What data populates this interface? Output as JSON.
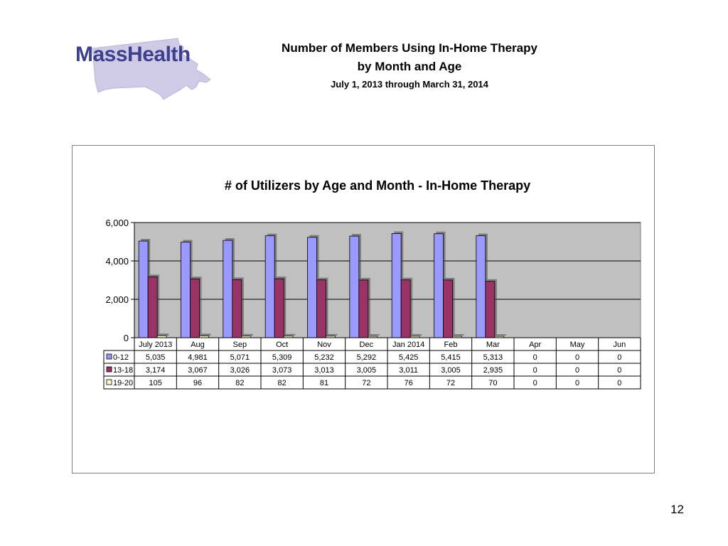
{
  "header": {
    "logo_text": "MassHealth",
    "title_line1": "Number of Members Using In-Home Therapy",
    "title_line2": "by Month and Age",
    "date_range": "July 1, 2013 through March 31, 2014"
  },
  "page_number": "12",
  "colors": {
    "series_0_12": "#9999ff",
    "series_13_18": "#993366",
    "series_19_20": "#ffffcc",
    "plot_background": "#c0c0c0",
    "logo_text": "#3d3f8f",
    "logo_map": "#cfcbe6"
  },
  "chart_data": {
    "type": "bar",
    "title": "# of Utilizers by Age and Month - In-Home Therapy",
    "categories": [
      "July 2013",
      "Aug",
      "Sep",
      "Oct",
      "Nov",
      "Dec",
      "Jan 2014",
      "Feb",
      "Mar",
      "Apr",
      "May",
      "Jun"
    ],
    "series": [
      {
        "name": "0-12",
        "values": [
          5035,
          4981,
          5071,
          5309,
          5232,
          5292,
          5425,
          5415,
          5313,
          0,
          0,
          0
        ],
        "labels": [
          "5,035",
          "4,981",
          "5,071",
          "5,309",
          "5,232",
          "5,292",
          "5,425",
          "5,415",
          "5,313",
          "0",
          "0",
          "0"
        ]
      },
      {
        "name": "13-18",
        "values": [
          3174,
          3067,
          3026,
          3073,
          3013,
          3005,
          3011,
          3005,
          2935,
          0,
          0,
          0
        ],
        "labels": [
          "3,174",
          "3,067",
          "3,026",
          "3,073",
          "3,013",
          "3,005",
          "3,011",
          "3,005",
          "2,935",
          "0",
          "0",
          "0"
        ]
      },
      {
        "name": "19-20",
        "values": [
          105,
          96,
          82,
          82,
          81,
          72,
          76,
          72,
          70,
          0,
          0,
          0
        ],
        "labels": [
          "105",
          "96",
          "82",
          "82",
          "81",
          "72",
          "76",
          "72",
          "70",
          "0",
          "0",
          "0"
        ]
      }
    ],
    "ylim": [
      0,
      6000
    ],
    "yticks": [
      0,
      2000,
      4000,
      6000
    ],
    "ytick_labels": [
      "0",
      "2,000",
      "4,000",
      "6,000"
    ],
    "grid": true,
    "legend": "data-table"
  }
}
